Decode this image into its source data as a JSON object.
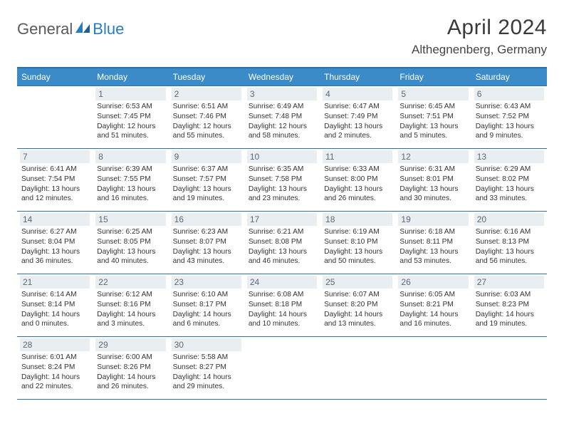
{
  "logo": {
    "part1": "General",
    "part2": "Blue"
  },
  "title": "April 2024",
  "location": "Althegnenberg, Germany",
  "colors": {
    "header_bg": "#3b8bc9",
    "header_border": "#2f6fa3",
    "daynum_bg": "#e9eef2",
    "daynum_text": "#5a6a78",
    "text": "#333333",
    "logo_blue": "#2a7bbf"
  },
  "weekdays": [
    "Sunday",
    "Monday",
    "Tuesday",
    "Wednesday",
    "Thursday",
    "Friday",
    "Saturday"
  ],
  "first_day_index": 1,
  "days": [
    {
      "n": 1,
      "sr": "6:53 AM",
      "ss": "7:45 PM",
      "dl": "12 hours and 51 minutes."
    },
    {
      "n": 2,
      "sr": "6:51 AM",
      "ss": "7:46 PM",
      "dl": "12 hours and 55 minutes."
    },
    {
      "n": 3,
      "sr": "6:49 AM",
      "ss": "7:48 PM",
      "dl": "12 hours and 58 minutes."
    },
    {
      "n": 4,
      "sr": "6:47 AM",
      "ss": "7:49 PM",
      "dl": "13 hours and 2 minutes."
    },
    {
      "n": 5,
      "sr": "6:45 AM",
      "ss": "7:51 PM",
      "dl": "13 hours and 5 minutes."
    },
    {
      "n": 6,
      "sr": "6:43 AM",
      "ss": "7:52 PM",
      "dl": "13 hours and 9 minutes."
    },
    {
      "n": 7,
      "sr": "6:41 AM",
      "ss": "7:54 PM",
      "dl": "13 hours and 12 minutes."
    },
    {
      "n": 8,
      "sr": "6:39 AM",
      "ss": "7:55 PM",
      "dl": "13 hours and 16 minutes."
    },
    {
      "n": 9,
      "sr": "6:37 AM",
      "ss": "7:57 PM",
      "dl": "13 hours and 19 minutes."
    },
    {
      "n": 10,
      "sr": "6:35 AM",
      "ss": "7:58 PM",
      "dl": "13 hours and 23 minutes."
    },
    {
      "n": 11,
      "sr": "6:33 AM",
      "ss": "8:00 PM",
      "dl": "13 hours and 26 minutes."
    },
    {
      "n": 12,
      "sr": "6:31 AM",
      "ss": "8:01 PM",
      "dl": "13 hours and 30 minutes."
    },
    {
      "n": 13,
      "sr": "6:29 AM",
      "ss": "8:02 PM",
      "dl": "13 hours and 33 minutes."
    },
    {
      "n": 14,
      "sr": "6:27 AM",
      "ss": "8:04 PM",
      "dl": "13 hours and 36 minutes."
    },
    {
      "n": 15,
      "sr": "6:25 AM",
      "ss": "8:05 PM",
      "dl": "13 hours and 40 minutes."
    },
    {
      "n": 16,
      "sr": "6:23 AM",
      "ss": "8:07 PM",
      "dl": "13 hours and 43 minutes."
    },
    {
      "n": 17,
      "sr": "6:21 AM",
      "ss": "8:08 PM",
      "dl": "13 hours and 46 minutes."
    },
    {
      "n": 18,
      "sr": "6:19 AM",
      "ss": "8:10 PM",
      "dl": "13 hours and 50 minutes."
    },
    {
      "n": 19,
      "sr": "6:18 AM",
      "ss": "8:11 PM",
      "dl": "13 hours and 53 minutes."
    },
    {
      "n": 20,
      "sr": "6:16 AM",
      "ss": "8:13 PM",
      "dl": "13 hours and 56 minutes."
    },
    {
      "n": 21,
      "sr": "6:14 AM",
      "ss": "8:14 PM",
      "dl": "14 hours and 0 minutes."
    },
    {
      "n": 22,
      "sr": "6:12 AM",
      "ss": "8:16 PM",
      "dl": "14 hours and 3 minutes."
    },
    {
      "n": 23,
      "sr": "6:10 AM",
      "ss": "8:17 PM",
      "dl": "14 hours and 6 minutes."
    },
    {
      "n": 24,
      "sr": "6:08 AM",
      "ss": "8:18 PM",
      "dl": "14 hours and 10 minutes."
    },
    {
      "n": 25,
      "sr": "6:07 AM",
      "ss": "8:20 PM",
      "dl": "14 hours and 13 minutes."
    },
    {
      "n": 26,
      "sr": "6:05 AM",
      "ss": "8:21 PM",
      "dl": "14 hours and 16 minutes."
    },
    {
      "n": 27,
      "sr": "6:03 AM",
      "ss": "8:23 PM",
      "dl": "14 hours and 19 minutes."
    },
    {
      "n": 28,
      "sr": "6:01 AM",
      "ss": "8:24 PM",
      "dl": "14 hours and 22 minutes."
    },
    {
      "n": 29,
      "sr": "6:00 AM",
      "ss": "8:26 PM",
      "dl": "14 hours and 26 minutes."
    },
    {
      "n": 30,
      "sr": "5:58 AM",
      "ss": "8:27 PM",
      "dl": "14 hours and 29 minutes."
    }
  ],
  "labels": {
    "sunrise": "Sunrise:",
    "sunset": "Sunset:",
    "daylight": "Daylight:"
  }
}
